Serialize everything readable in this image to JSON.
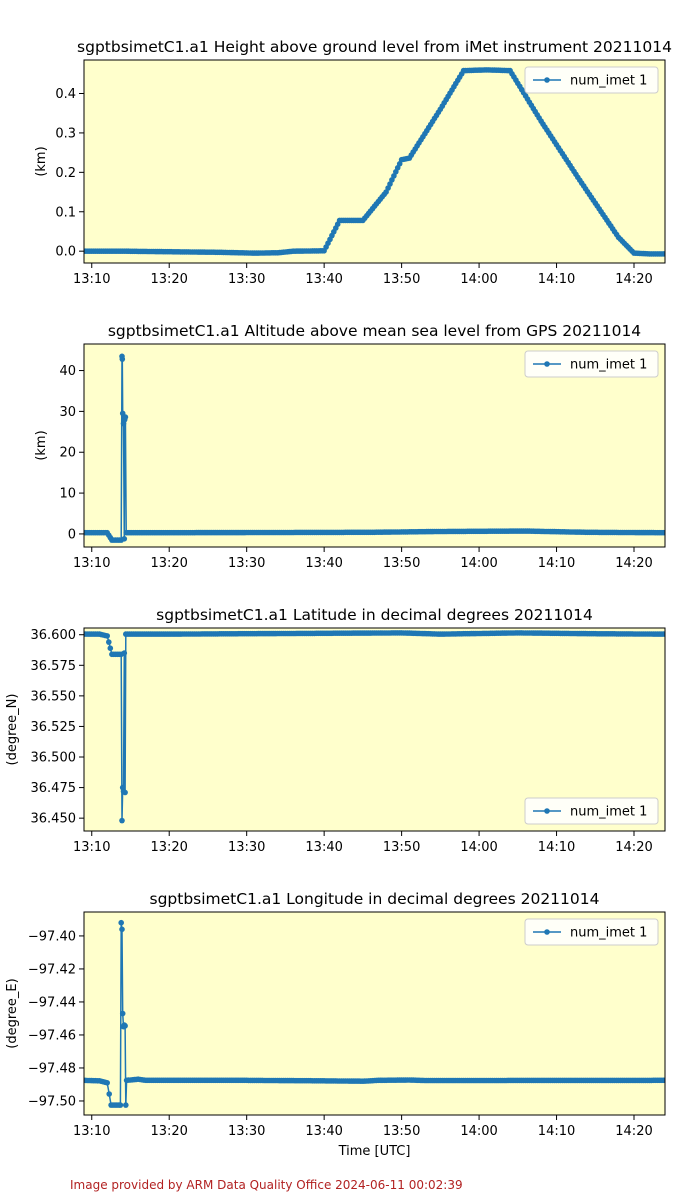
{
  "footer": "Image provided by ARM Data Quality Office 2024-06-11 00:02:39",
  "colors": {
    "plot_background": "#ffffcc",
    "series_line": "#1f77b4",
    "footer_text": "#b22222"
  },
  "chart_data": [
    {
      "type": "line",
      "title": "sgptbsimetC1.a1 Height above ground level from iMet instrument 20211014",
      "xlabel": "",
      "ylabel": "(km)",
      "xlim": [
        "13:09",
        "14:24"
      ],
      "ylim": [
        -0.03,
        0.485
      ],
      "yticks": [
        0.0,
        0.1,
        0.2,
        0.3,
        0.4
      ],
      "ytick_labels": [
        "0.0",
        "0.1",
        "0.2",
        "0.3",
        "0.4"
      ],
      "xtick_labels": [
        "13:10",
        "13:20",
        "13:30",
        "13:40",
        "13:50",
        "14:00",
        "14:10",
        "14:20"
      ],
      "legend": "top-right",
      "grid": false,
      "series": [
        {
          "name": "num_imet 1",
          "x": [
            "13:09",
            "13:14",
            "13:27",
            "13:31",
            "13:34",
            "13:36",
            "13:40",
            "13:42",
            "13:45",
            "13:48",
            "13:50",
            "13:51",
            "13:55",
            "13:58",
            "14:01",
            "14:04",
            "14:08",
            "14:13",
            "14:18",
            "14:20",
            "14:22",
            "14:24"
          ],
          "y": [
            0.0,
            0.0,
            -0.003,
            -0.005,
            -0.004,
            0.0,
            0.001,
            0.078,
            0.078,
            0.15,
            0.232,
            0.236,
            0.36,
            0.458,
            0.46,
            0.458,
            0.33,
            0.18,
            0.035,
            -0.005,
            -0.007,
            -0.007
          ]
        }
      ]
    },
    {
      "type": "line",
      "title": "sgptbsimetC1.a1 Altitude above mean sea level from GPS 20211014",
      "xlabel": "",
      "ylabel": "(km)",
      "xlim": [
        "13:09",
        "14:24"
      ],
      "ylim": [
        -3.2,
        46.5
      ],
      "yticks": [
        0,
        10,
        20,
        30,
        40
      ],
      "ytick_labels": [
        "0",
        "10",
        "20",
        "30",
        "40"
      ],
      "xtick_labels": [
        "13:10",
        "13:20",
        "13:30",
        "13:40",
        "13:50",
        "14:00",
        "14:10",
        "14:20"
      ],
      "legend": "top-right",
      "grid": false,
      "series": [
        {
          "name": "num_imet 1",
          "x": [
            "13:09",
            "13:12",
            "13:12.6",
            "13:13.8",
            "13:13.9",
            "13:13.95",
            "13:14.0",
            "13:14.1",
            "13:14.2",
            "13:14.25",
            "13:14.35",
            "13:14.45",
            "13:20",
            "13:46",
            "13:55",
            "14:06",
            "14:14",
            "14:24"
          ],
          "y": [
            0.3,
            0.3,
            -1.5,
            -1.5,
            43.5,
            42.8,
            29.5,
            27.0,
            -1.2,
            28.0,
            28.6,
            0.3,
            0.3,
            0.4,
            0.6,
            0.7,
            0.4,
            0.3
          ]
        }
      ]
    },
    {
      "type": "line",
      "title": "sgptbsimetC1.a1 Latitude in decimal degrees 20211014",
      "xlabel": "",
      "ylabel": "(degree_N)",
      "xlim": [
        "13:09",
        "14:24"
      ],
      "ylim": [
        36.4395,
        36.6055
      ],
      "yticks": [
        36.45,
        36.475,
        36.5,
        36.525,
        36.55,
        36.575,
        36.6
      ],
      "ytick_labels": [
        "36.450",
        "36.475",
        "36.500",
        "36.525",
        "36.550",
        "36.575",
        "36.600"
      ],
      "xtick_labels": [
        "13:10",
        "13:20",
        "13:30",
        "13:40",
        "13:50",
        "14:00",
        "14:10",
        "14:20"
      ],
      "legend": "lower-right",
      "grid": false,
      "series": [
        {
          "name": "num_imet 1",
          "x": [
            "13:09",
            "13:11",
            "13:12",
            "13:12.6",
            "13:13.8",
            "13:13.9",
            "13:14.0",
            "13:14.1",
            "13:14.2",
            "13:14.3",
            "13:14.4",
            "13:20",
            "13:50",
            "13:55",
            "14:05",
            "14:15",
            "14:24"
          ],
          "y": [
            36.6005,
            36.6005,
            36.599,
            36.584,
            36.584,
            36.448,
            36.475,
            36.472,
            36.585,
            36.471,
            36.6005,
            36.6005,
            36.6015,
            36.6005,
            36.6015,
            36.6008,
            36.6005
          ]
        }
      ]
    },
    {
      "type": "line",
      "title": "sgptbsimetC1.a1 Longitude in decimal degrees 20211014",
      "xlabel": "Time [UTC]",
      "ylabel": "(degree_E)",
      "xlim": [
        "13:09",
        "14:24"
      ],
      "ylim": [
        -97.5085,
        -97.3855
      ],
      "yticks": [
        -97.4,
        -97.42,
        -97.44,
        -97.46,
        -97.48,
        -97.5
      ],
      "ytick_labels": [
        "−97.40",
        "−97.42",
        "−97.44",
        "−97.46",
        "−97.48",
        "−97.50"
      ],
      "xtick_labels": [
        "13:10",
        "13:20",
        "13:30",
        "13:40",
        "13:50",
        "14:00",
        "14:10",
        "14:20"
      ],
      "legend": "top-right",
      "grid": false,
      "series": [
        {
          "name": "num_imet 1",
          "x": [
            "13:09",
            "13:11",
            "13:12",
            "13:12.5",
            "13:13.5",
            "13:13.7",
            "13:13.8",
            "13:13.9",
            "13:14.0",
            "13:14.1",
            "13:14.2",
            "13:14.3",
            "13:14.4",
            "13:14.5",
            "13:16",
            "13:17",
            "13:30",
            "13:40",
            "13:45",
            "13:47",
            "13:51",
            "13:53",
            "14:24"
          ],
          "y": [
            -97.4875,
            -97.4878,
            -97.489,
            -97.5025,
            -97.5025,
            -97.5025,
            -97.392,
            -97.396,
            -97.447,
            -97.455,
            -97.454,
            -97.4545,
            -97.5025,
            -97.4875,
            -97.4868,
            -97.4875,
            -97.4875,
            -97.4878,
            -97.488,
            -97.4875,
            -97.4873,
            -97.4876,
            -97.4875
          ]
        }
      ]
    }
  ]
}
